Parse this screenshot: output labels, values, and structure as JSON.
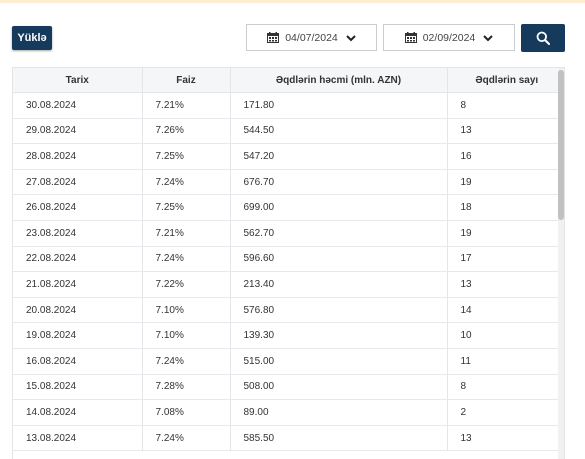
{
  "toolbar": {
    "load_label": "Yüklə",
    "date_from": "04/07/2024",
    "date_to": "02/09/2024"
  },
  "colors": {
    "primary": "#153a5c",
    "accent_strip": "#fbeed2"
  },
  "icons": {
    "calendar": "calendar-icon",
    "chevron": "chevron-down-icon",
    "search": "search-icon"
  },
  "table": {
    "headers": [
      "Tarix",
      "Faiz",
      "Əqdlərin həcmi (mln. AZN)",
      "Əqdlərin sayı"
    ],
    "rows": [
      [
        "30.08.2024",
        "7.21%",
        "171.80",
        "8"
      ],
      [
        "29.08.2024",
        "7.26%",
        "544.50",
        "13"
      ],
      [
        "28.08.2024",
        "7.25%",
        "547.20",
        "16"
      ],
      [
        "27.08.2024",
        "7.24%",
        "676.70",
        "19"
      ],
      [
        "26.08.2024",
        "7.25%",
        "699.00",
        "18"
      ],
      [
        "23.08.2024",
        "7.21%",
        "562.70",
        "19"
      ],
      [
        "22.08.2024",
        "7.24%",
        "596.60",
        "17"
      ],
      [
        "21.08.2024",
        "7.22%",
        "213.40",
        "13"
      ],
      [
        "20.08.2024",
        "7.10%",
        "576.80",
        "14"
      ],
      [
        "19.08.2024",
        "7.10%",
        "139.30",
        "10"
      ],
      [
        "16.08.2024",
        "7.24%",
        "515.00",
        "11"
      ],
      [
        "15.08.2024",
        "7.28%",
        "508.00",
        "8"
      ],
      [
        "14.08.2024",
        "7.08%",
        "89.00",
        "2"
      ],
      [
        "13.08.2024",
        "7.24%",
        "585.50",
        "13"
      ]
    ]
  }
}
